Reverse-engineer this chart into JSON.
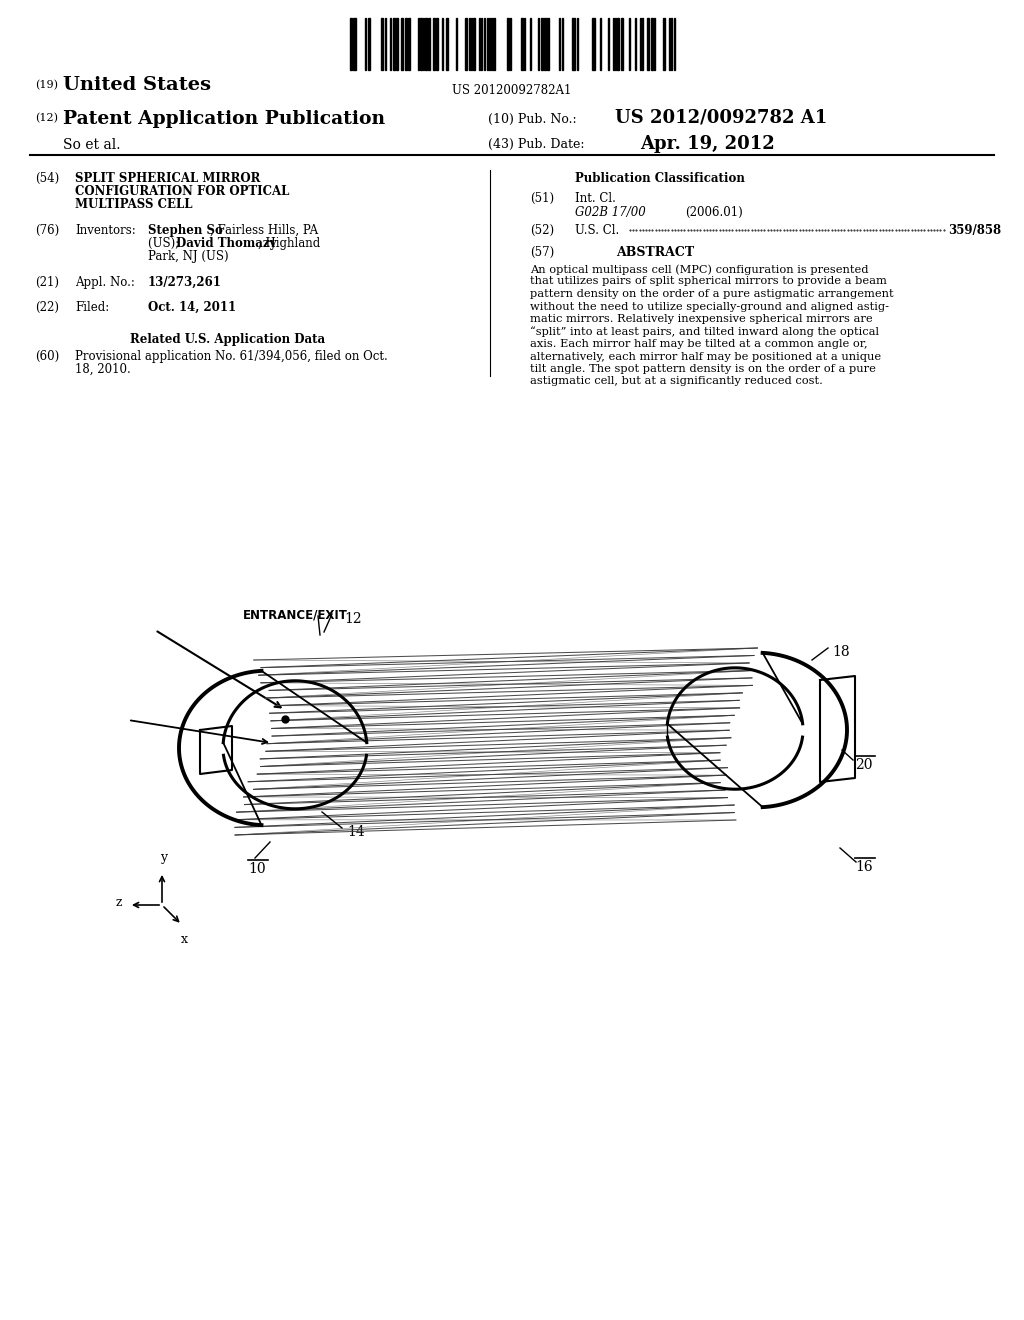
{
  "bg_color": "#ffffff",
  "barcode_text": "US 20120092782A1",
  "title_19": "(19) United States",
  "title_12": "(12) Patent Application Publication",
  "pub_no_label": "(10) Pub. No.:",
  "pub_no_value": "US 2012/0092782 A1",
  "pub_date_label": "(43) Pub. Date:",
  "pub_date_value": "Apr. 19, 2012",
  "author": "So et al.",
  "field54_text_1": "SPLIT SPHERICAL MIRROR",
  "field54_text_2": "CONFIGURATION FOR OPTICAL",
  "field54_text_3": "MULTIPASS CELL",
  "field76_inventor1_bold": "Stephen So",
  "field76_inventor1_rest": ", Fairless Hills, PA",
  "field76_line2": "(US); ",
  "field76_inventor2_bold": "David Thomazy",
  "field76_line2_rest": ", Highland",
  "field76_line3": "Park, NJ (US)",
  "field21_value": "13/273,261",
  "field22_value": "Oct. 14, 2011",
  "related_title": "Related U.S. Application Data",
  "field60_line1": "Provisional application No. 61/394,056, filed on Oct.",
  "field60_line2": "18, 2010.",
  "pub_class_title": "Publication Classification",
  "field51_class": "G02B 17/00",
  "field51_year": "(2006.01)",
  "field52_value": "359/858",
  "field57_title": "ABSTRACT",
  "abstract_text": "An optical multipass cell (MPC) configuration is presented that utilizes pairs of split spherical mirrors to provide a beam pattern density on the order of a pure astigmatic arrangement without the need to utilize specially-ground and aligned astig-matic mirrors. Relatively inexpensive spherical mirrors are “split” into at least pairs, and tilted inward along the optical axis. Each mirror half may be tilted at a common angle or, alternatively, each mirror half may be positioned at a unique tilt angle. The spot pattern density is on the order of a pure astigmatic cell, but at a significantly reduced cost.",
  "diagram_label10": "10",
  "diagram_label12": "12",
  "diagram_label14": "14",
  "diagram_label16": "16",
  "diagram_label18": "18",
  "diagram_label20": "20",
  "diagram_entrance": "ENTRANCE/EXIT"
}
